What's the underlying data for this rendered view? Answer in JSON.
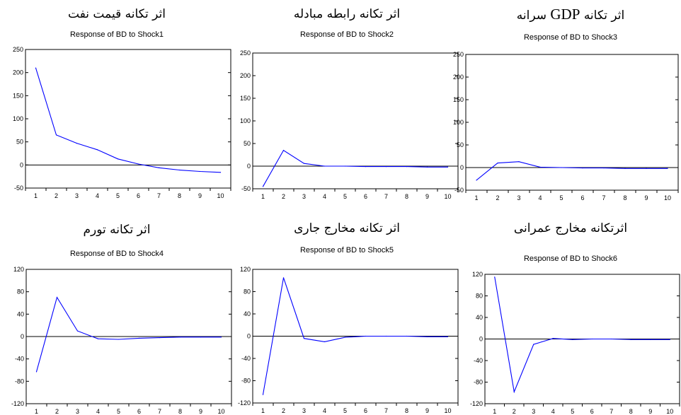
{
  "chart_data": [
    {
      "type": "line",
      "persian_title": "اثر تکانه قیمت نفت",
      "title": "Response of BD to Shock1",
      "categories": [
        1,
        2,
        3,
        4,
        5,
        6,
        7,
        8,
        9,
        10
      ],
      "series": [
        {
          "values": [
            210,
            65,
            47,
            33,
            13,
            2,
            -6,
            -11,
            -14,
            -16
          ]
        }
      ],
      "ylim": [
        -50,
        250
      ],
      "yticks": [
        -50,
        0,
        50,
        100,
        150,
        200,
        250
      ],
      "color": "#0000ff",
      "grid": false
    },
    {
      "type": "line",
      "persian_title": "اثر تکانه رابطه مبادله",
      "title": "Response of BD to Shock2",
      "categories": [
        1,
        2,
        3,
        4,
        5,
        6,
        7,
        8,
        9,
        10
      ],
      "series": [
        {
          "values": [
            -45,
            35,
            6,
            0,
            0,
            -1,
            -1,
            -1,
            -2,
            -2
          ]
        }
      ],
      "ylim": [
        -50,
        250
      ],
      "yticks": [
        -50,
        0,
        50,
        100,
        150,
        200,
        250
      ],
      "color": "#0000ff",
      "grid": false
    },
    {
      "type": "line",
      "persian_title_parts": [
        "اثر تکانه",
        "GDP",
        "سرانه"
      ],
      "title": "Response of BD to Shock3",
      "categories": [
        1,
        2,
        3,
        4,
        5,
        6,
        7,
        8,
        9,
        10
      ],
      "series": [
        {
          "values": [
            -28,
            10,
            13,
            1,
            0,
            -1,
            -1,
            -2,
            -2,
            -2
          ]
        }
      ],
      "ylim": [
        -50,
        250
      ],
      "yticks": [
        -50,
        0,
        50,
        100,
        150,
        200,
        250
      ],
      "color": "#0000ff",
      "grid": false
    },
    {
      "type": "line",
      "persian_title": "اثر تکانه تورم",
      "title": "Response of BD to Shock4",
      "categories": [
        1,
        2,
        3,
        4,
        5,
        6,
        7,
        8,
        9,
        10
      ],
      "series": [
        {
          "values": [
            -63,
            70,
            10,
            -4,
            -5,
            -3,
            -2,
            -1,
            -1,
            -1
          ]
        }
      ],
      "ylim": [
        -120,
        120
      ],
      "yticks": [
        -120,
        -80,
        -40,
        0,
        40,
        80,
        120
      ],
      "color": "#0000ff",
      "grid": false
    },
    {
      "type": "line",
      "persian_title": "اثر تکانه مخارج جاری",
      "title": "Response of BD to Shock5",
      "categories": [
        1,
        2,
        3,
        4,
        5,
        6,
        7,
        8,
        9,
        10
      ],
      "series": [
        {
          "values": [
            -105,
            105,
            -4,
            -10,
            -2,
            0,
            0,
            0,
            -1,
            -1
          ]
        }
      ],
      "ylim": [
        -120,
        120
      ],
      "yticks": [
        -120,
        -80,
        -40,
        0,
        40,
        80,
        120
      ],
      "color": "#0000ff",
      "grid": false
    },
    {
      "type": "line",
      "persian_title": "اثرتکانه  مخارج عمرانی",
      "title": "Response of BD to Shock6",
      "categories": [
        1,
        2,
        3,
        4,
        5,
        6,
        7,
        8,
        9,
        10
      ],
      "series": [
        {
          "values": [
            115,
            -98,
            -10,
            1,
            -1,
            0,
            0,
            -1,
            -1,
            -1
          ]
        }
      ],
      "ylim": [
        -120,
        120
      ],
      "yticks": [
        -120,
        -80,
        -40,
        0,
        40,
        80,
        120
      ],
      "color": "#0000ff",
      "grid": false
    }
  ]
}
